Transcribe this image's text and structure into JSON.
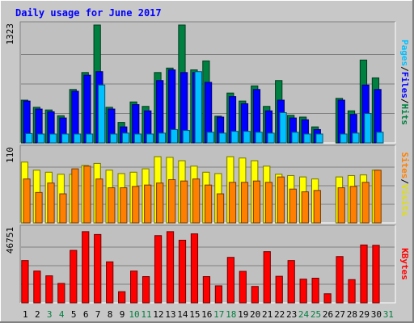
{
  "chart_data": {
    "type": "bar",
    "title": "Daily usage for June 2017",
    "categories": [
      "1",
      "2",
      "3",
      "4",
      "5",
      "6",
      "7",
      "8",
      "9",
      "10",
      "11",
      "12",
      "13",
      "14",
      "15",
      "16",
      "17",
      "18",
      "19",
      "20",
      "21",
      "22",
      "23",
      "24",
      "25",
      "26",
      "27",
      "28",
      "29",
      "30",
      "31"
    ],
    "weekend_days": [
      "3",
      "4",
      "10",
      "11",
      "17",
      "18",
      "24",
      "25",
      "31"
    ],
    "grid": true,
    "panels": [
      {
        "id": "hits_files_pages",
        "ylim": [
          0,
          1323
        ],
        "max_label": "1323",
        "axis_labels": [
          {
            "text": "Pages",
            "color": "#00c0ff"
          },
          {
            "text": "Files",
            "color": "#0000ff"
          },
          {
            "text": "Hits",
            "color": "#008040"
          }
        ],
        "series": [
          {
            "name": "Hits",
            "color": "#008040",
            "values": [
              480,
              400,
              370,
              305,
              600,
              790,
              1323,
              400,
              230,
              460,
              410,
              790,
              840,
              1323,
              820,
              920,
              300,
              560,
              470,
              640,
              410,
              700,
              310,
              290,
              180,
              0,
              500,
              360,
              930,
              730,
              0
            ]
          },
          {
            "name": "Files",
            "color": "#0000ff",
            "values": [
              470,
              380,
              350,
              280,
              580,
              760,
              800,
              380,
              180,
              430,
              360,
              700,
              820,
              790,
              790,
              680,
              290,
              520,
              440,
              600,
              360,
              480,
              280,
              260,
              150,
              0,
              480,
              320,
              650,
              600,
              0
            ]
          },
          {
            "name": "Pages",
            "color": "#00c0ff",
            "values": [
              105,
              100,
              100,
              100,
              100,
              100,
              650,
              100,
              110,
              100,
              100,
              110,
              150,
              140,
              800,
              120,
              110,
              130,
              130,
              120,
              110,
              340,
              120,
              100,
              100,
              0,
              100,
              110,
              330,
              120,
              0
            ]
          }
        ]
      },
      {
        "id": "visits_sites",
        "ylim": [
          0,
          110
        ],
        "max_label": "110",
        "axis_labels": [
          {
            "text": "Sites",
            "color": "#ff8000"
          },
          {
            "text": "Visits",
            "color": "#e0e000"
          }
        ],
        "series": [
          {
            "name": "Visits",
            "color": "#ffff00",
            "values": [
              90,
              78,
              75,
              72,
              72,
              85,
              88,
              78,
              73,
              75,
              80,
              98,
              97,
              92,
              84,
              75,
              73,
              98,
              96,
              92,
              84,
              72,
              70,
              68,
              65,
              0,
              68,
              70,
              71,
              78,
              0
            ]
          },
          {
            "name": "Sites",
            "color": "#ff8000",
            "values": [
              65,
              45,
              59,
              43,
              80,
              84,
              65,
              52,
              52,
              54,
              56,
              59,
              64,
              62,
              65,
              56,
              43,
              60,
              60,
              62,
              60,
              68,
              50,
              46,
              48,
              0,
              52,
              54,
              60,
              78,
              0
            ]
          }
        ]
      },
      {
        "id": "kbytes",
        "ylim": [
          0,
          46751
        ],
        "max_label": "46751",
        "axis_labels": [
          {
            "text": "KBytes",
            "color": "#ff0000"
          }
        ],
        "series": [
          {
            "name": "KBytes",
            "color": "#ff0000",
            "values": [
              26600,
              20000,
              17000,
              12200,
              33000,
              44800,
              43000,
              25800,
              7000,
              20000,
              16500,
              42300,
              44800,
              39400,
              43400,
              16500,
              10700,
              28600,
              19800,
              10300,
              32200,
              16700,
              26600,
              14900,
              15500,
              5700,
              29100,
              14600,
              36400,
              36200,
              0
            ]
          }
        ]
      }
    ]
  }
}
